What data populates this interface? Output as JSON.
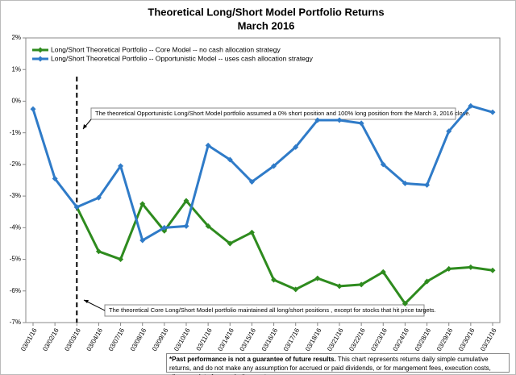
{
  "chart_data": {
    "type": "line",
    "title": "Theoretical Long/Short Model Portfolio Returns",
    "subtitle": "March 2016",
    "categories": [
      "03/01/16",
      "03/02/16",
      "03/03/16",
      "03/04/16",
      "03/07/16",
      "03/08/16",
      "03/09/16",
      "03/10/16",
      "03/11/16",
      "03/14/16",
      "03/15/16",
      "03/16/16",
      "03/17/16",
      "03/18/16",
      "03/21/16",
      "03/22/16",
      "03/23/16",
      "03/24/16",
      "03/28/16",
      "03/29/16",
      "03/30/16",
      "03/31/16"
    ],
    "series": [
      {
        "name": "Long/Short Theoretical Portfolio -- Core Model -- no cash allocation strategy",
        "color": "#2e8b1e",
        "values": [
          null,
          null,
          -3.35,
          -4.75,
          -5.0,
          -3.25,
          -4.1,
          -3.15,
          -3.95,
          -4.5,
          -4.15,
          -5.65,
          -5.95,
          -5.6,
          -5.85,
          -5.8,
          -5.4,
          -6.4,
          -5.7,
          -5.3,
          -5.25,
          -5.35
        ]
      },
      {
        "name": "Long/Short Theoretical Portfolio -- Opportunistic Model -- uses cash allocation strategy",
        "color": "#2f7bc8",
        "values": [
          -0.25,
          -2.45,
          -3.35,
          -3.05,
          -2.05,
          -4.4,
          -4.0,
          -3.95,
          -1.4,
          -1.85,
          -2.55,
          -2.05,
          -1.45,
          -0.6,
          -0.6,
          -0.7,
          -2.0,
          -2.6,
          -2.65,
          -0.95,
          -0.15,
          -0.35
        ]
      }
    ],
    "ylim": [
      -7,
      2
    ],
    "yticks": [
      {
        "value": -7,
        "label": "-7%"
      },
      {
        "value": -6,
        "label": "-6%"
      },
      {
        "value": -5,
        "label": "-5%"
      },
      {
        "value": -4,
        "label": "-4%"
      },
      {
        "value": -3,
        "label": "-3%"
      },
      {
        "value": -2,
        "label": "-2%"
      },
      {
        "value": -1,
        "label": "-1%"
      },
      {
        "value": 0,
        "label": "0%"
      },
      {
        "value": 1,
        "label": "1%"
      },
      {
        "value": 2,
        "label": "2%"
      }
    ],
    "legend": "upper left",
    "annotations": [
      "The theoretical Opportunistic Long/Short Model portfolio assumed a 0% short position and  100% long position from the March 3, 2016 close.",
      "The theoretical Core Long/Short Model portfolio maintained all long/short positions , except for stocks that hit price targets."
    ],
    "footnote": {
      "bold": "*Past performance is not a guarantee of future results.",
      "text": "This chart represents returns daily simple cumulative returns, and do not make any assumption for accrued or paid dividends, or for mangement fees, execution costs, slippage, data fees and other costs."
    }
  }
}
